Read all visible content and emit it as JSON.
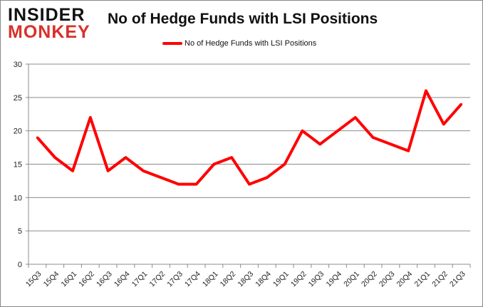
{
  "logo": {
    "line1": "INSIDER",
    "line2": "MONKEY"
  },
  "colors": {
    "series": "#ff0000",
    "grid": "#8c8c8c",
    "logo_red": "#d9302a"
  },
  "chart_data": {
    "type": "line",
    "title": "No of Hedge Funds with LSI Positions",
    "categories": [
      "15Q3",
      "15Q4",
      "16Q1",
      "16Q2",
      "16Q3",
      "16Q4",
      "17Q1",
      "17Q2",
      "17Q3",
      "17Q4",
      "18Q1",
      "18Q2",
      "18Q3",
      "18Q4",
      "19Q1",
      "19Q2",
      "19Q3",
      "19Q4",
      "20Q1",
      "20Q2",
      "20Q3",
      "20Q4",
      "21Q1",
      "21Q2",
      "21Q3"
    ],
    "series": [
      {
        "name": "No of Hedge Funds with LSI Positions",
        "values": [
          19,
          16,
          14,
          22,
          14,
          16,
          14,
          13,
          12,
          12,
          15,
          16,
          12,
          13,
          15,
          20,
          18,
          20,
          22,
          19,
          18,
          17,
          26,
          21,
          24
        ]
      }
    ],
    "ylim": [
      0,
      30
    ],
    "yticks": [
      0,
      5,
      10,
      15,
      20,
      25,
      30
    ],
    "grid": true,
    "legend": "top"
  }
}
